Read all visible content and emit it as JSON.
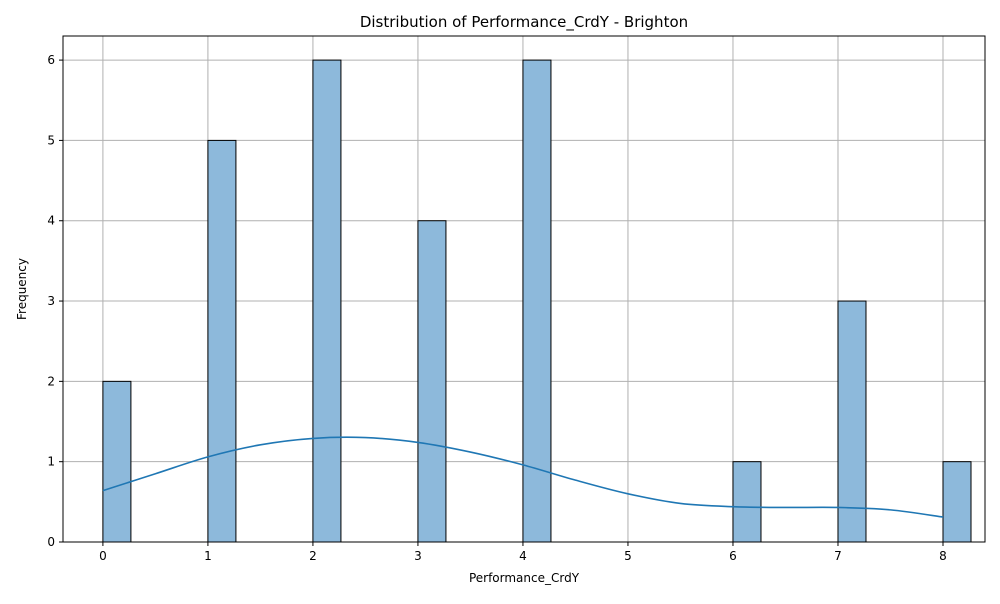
{
  "chart_data": {
    "type": "bar",
    "subtype": "histogram-with-kde",
    "title": "Distribution of Performance_CrdY - Brighton",
    "xlabel": "Performance_CrdY",
    "ylabel": "Frequency",
    "xlim": [
      -0.38,
      8.4
    ],
    "ylim": [
      0,
      6.3
    ],
    "xticks": [
      "0",
      "1",
      "2",
      "3",
      "4",
      "5",
      "6",
      "7",
      "8"
    ],
    "yticks": [
      "0",
      "1",
      "2",
      "3",
      "4",
      "5",
      "6"
    ],
    "grid": true,
    "bin_width": 0.2667,
    "bins": [
      {
        "x": 0,
        "count": 2
      },
      {
        "x": 1,
        "count": 5
      },
      {
        "x": 2,
        "count": 6
      },
      {
        "x": 3,
        "count": 4
      },
      {
        "x": 4,
        "count": 6
      },
      {
        "x": 6,
        "count": 1
      },
      {
        "x": 7,
        "count": 3
      },
      {
        "x": 8,
        "count": 1
      }
    ],
    "kde": {
      "x": [
        0,
        0.5,
        1,
        1.5,
        2,
        2.5,
        3,
        3.5,
        4,
        4.5,
        5,
        5.5,
        6,
        6.5,
        7,
        7.5,
        8
      ],
      "y": [
        0.64,
        0.85,
        1.06,
        1.21,
        1.29,
        1.3,
        1.24,
        1.12,
        0.96,
        0.77,
        0.6,
        0.48,
        0.44,
        0.43,
        0.43,
        0.4,
        0.31
      ]
    },
    "colors": {
      "bar_fill": "#8db9db",
      "bar_edge": "#000000",
      "kde_line": "#1f77b4",
      "grid": "#b0b0b0"
    }
  }
}
